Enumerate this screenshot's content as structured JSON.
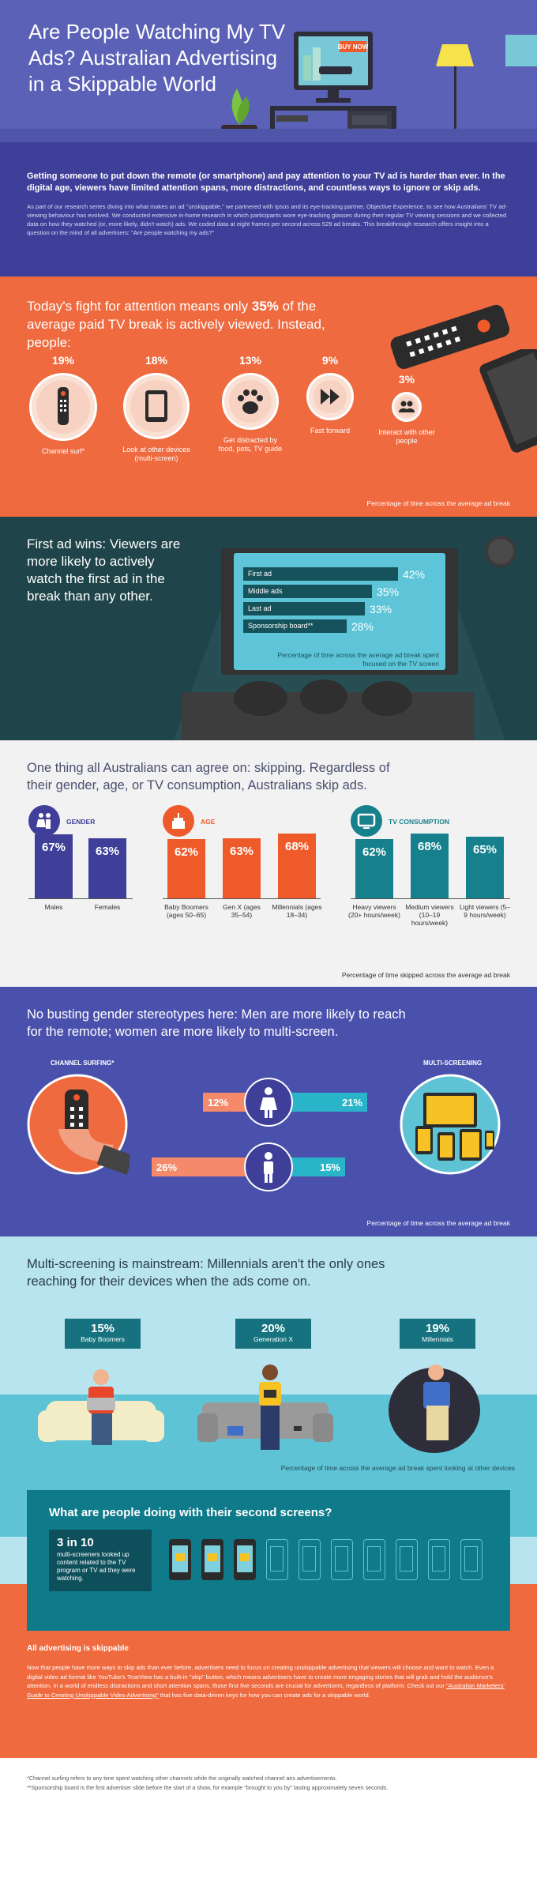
{
  "hero": {
    "title": "Are People Watching My TV Ads? Australian Advertising in a Skippable World",
    "tv_sign": "BUY NOW"
  },
  "intro": {
    "lead": "Getting someone to put down the remote (or smartphone) and pay attention to your TV ad is harder than ever. In the digital age, viewers have limited attention spans, more distractions, and countless ways to ignore or skip ads.",
    "body": "As part of our research series diving into what makes an ad \"unskippable,\" we partnered with Ipsos and its eye-tracking partner, Objective Experience, to see how Australians' TV ad-viewing behaviour has evolved. We conducted extensive in-home research in which participants wore eye-tracking glasses during their regular TV viewing sessions and we collected data on how they watched (or, more likely, didn't watch) ads. We coded data at eight frames per second across 529 ad breaks. This breakthrough research offers insight into a question on the mind of all advertisers: \"Are people watching my ads?\""
  },
  "attention": {
    "headline_pre": "Today's fight for attention means only ",
    "headline_pct": "35%",
    "headline_post": " of the average paid TV break is actively viewed. Instead, people:",
    "items": [
      {
        "pct": "19%",
        "label": "Channel surf*",
        "value": 19,
        "icon": "remote-icon"
      },
      {
        "pct": "18%",
        "label": "Look at other devices (multi-screen)",
        "value": 18,
        "icon": "tablet-icon"
      },
      {
        "pct": "13%",
        "label": "Get distracted by food, pets, TV guide",
        "value": 13,
        "icon": "paw-icon"
      },
      {
        "pct": "9%",
        "label": "Fast forward",
        "value": 9,
        "icon": "fast-forward-icon"
      },
      {
        "pct": "3%",
        "label": "Interact with other people",
        "value": 3,
        "icon": "people-icon"
      }
    ],
    "note": "Percentage of time across the average ad break"
  },
  "first_ad": {
    "headline": "First ad wins: Viewers are more likely to actively watch the first ad in the break than any other.",
    "rows": [
      {
        "label": "First ad",
        "pct": "42%",
        "value": 42
      },
      {
        "label": "Middle ads",
        "pct": "35%",
        "value": 35
      },
      {
        "label": "Last ad",
        "pct": "33%",
        "value": 33
      },
      {
        "label": "Sponsorship board**",
        "pct": "28%",
        "value": 28
      }
    ],
    "note": "Percentage of time across the average ad break spent focused on the TV screen"
  },
  "skipping": {
    "headline": "One thing all Australians can agree on: skipping. Regardless of their gender, age, or TV consumption, Australians skip ads.",
    "groups": [
      {
        "title": "GENDER",
        "color": "#3f3f9a",
        "icon": "gender-icon",
        "bars": [
          {
            "pct": "67%",
            "value": 67,
            "label": "Males"
          },
          {
            "pct": "63%",
            "value": 63,
            "label": "Females"
          }
        ]
      },
      {
        "title": "AGE",
        "color": "#ef5a2a",
        "icon": "cake-icon",
        "bars": [
          {
            "pct": "62%",
            "value": 62,
            "label": "Baby Boomers (ages 50–65)"
          },
          {
            "pct": "63%",
            "value": 63,
            "label": "Gen X (ages 35–54)"
          },
          {
            "pct": "68%",
            "value": 68,
            "label": "Millennials (ages 18–34)"
          }
        ]
      },
      {
        "title": "TV CONSUMPTION",
        "color": "#16808c",
        "icon": "tv-icon",
        "bars": [
          {
            "pct": "62%",
            "value": 62,
            "label": "Heavy viewers (20+ hours/week)"
          },
          {
            "pct": "68%",
            "value": 68,
            "label": "Medium viewers (10–19 hours/week)"
          },
          {
            "pct": "65%",
            "value": 65,
            "label": "Light viewers (5–9 hours/week)"
          }
        ]
      }
    ],
    "note": "Percentage of time skipped across the average ad break"
  },
  "gender": {
    "headline": "No busting gender stereotypes here: Men are more likely to reach for the remote; women are more likely to multi-screen.",
    "left_label": "CHANNEL SURFING*",
    "right_label": "MULTI-SCREENING",
    "rows": [
      {
        "who": "female",
        "left_pct": "12%",
        "left_value": 12,
        "right_pct": "21%",
        "right_value": 21
      },
      {
        "who": "male",
        "left_pct": "26%",
        "left_value": 26,
        "right_pct": "15%",
        "right_value": 15
      }
    ],
    "note": "Percentage of time across the average ad break"
  },
  "multi": {
    "headline": "Multi-screening is mainstream: Millennials aren't the only ones reaching for their devices when the ads come on.",
    "tags": [
      {
        "pct": "15%",
        "label": "Baby Boomers",
        "value": 15
      },
      {
        "pct": "20%",
        "label": "Generation X",
        "value": 20
      },
      {
        "pct": "19%",
        "label": "Millennials",
        "value": 19
      }
    ],
    "note": "Percentage of time across the average ad break spent looking at other devices",
    "box_title": "What are people doing with their second screens?",
    "stat_big": "3 in 10",
    "stat_text": "multi-screeners looked up content related to the TV program or TV ad they were watching.",
    "phones_highlighted": 3,
    "phones_total": 10
  },
  "skippable": {
    "title": "All advertising is skippable",
    "body_pre": "Now that people have more ways to skip ads than ever before, advertisers need to focus on creating unskippable advertising that viewers will choose and want to watch. Even a digital video ad format like YouTube's TrueView has a built-in \"skip\" button, which means advertisers have to create more engaging stories that will grab and hold the audience's attention. In a world of endless distractions and short attention spans, those first five seconds are crucial for advertisers, regardless of platform. Check out our ",
    "body_link": "\"Australian Marketers' Guide to Creating Unskippable Video Advertising\"",
    "body_post": " that has five data-driven keys for how you can create ads for a skippable world."
  },
  "footnotes": {
    "line1": "*Channel surfing refers to any time spent watching other channels while the originally watched channel airs advertisements.",
    "line2": "**Sponsorship board is the first advertiser slide before the start of a show, for example \"brought to you by\" lasting approximately seven seconds."
  }
}
